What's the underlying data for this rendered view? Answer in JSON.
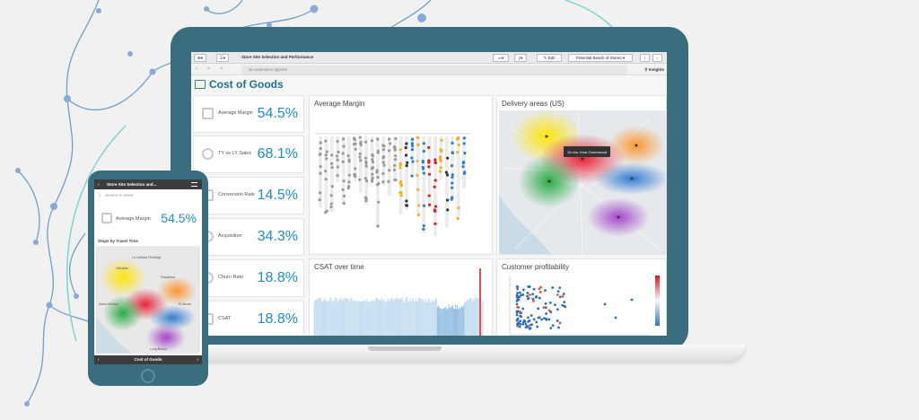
{
  "colors": {
    "device": "#3a6d7d",
    "accent": "#1f8ec2",
    "title": "#1e6f8e",
    "network": "#6fa0c8",
    "ring": "#7fd3cf"
  },
  "laptop": {
    "toolbar": {
      "app_title": "Store Site Selection and Performance",
      "edit_label": "Edit",
      "bookmark_label": "Potential Beach of Stores",
      "insights_label": "Insights"
    },
    "selections": {
      "empty_label": "No selections applied"
    },
    "sheet_title": "Cost of Goods",
    "kpis": [
      {
        "label": "Average Margin",
        "value": "54.5%",
        "icon": "stack-icon"
      },
      {
        "label": "TY vs LY Sales",
        "value": "68.1%",
        "icon": "target-icon"
      },
      {
        "label": "Conversion Rate",
        "value": "14.5%",
        "icon": "cart-icon"
      },
      {
        "label": "Acquisition",
        "value": "34.3%",
        "icon": "bulb-icon"
      },
      {
        "label": "Churn Rate",
        "value": "18.8%",
        "icon": "cycle-icon"
      },
      {
        "label": "CSAT",
        "value": "18.8%",
        "icon": "chat-icon"
      }
    ],
    "panels": {
      "margin": "Average Margin",
      "delivery": "Delivery areas (US)",
      "map_tooltip": "15 min. from Greenwood",
      "csat": "CSAT over time",
      "profit": "Customer profitability"
    }
  },
  "phone": {
    "header": "Store Site Selection and...",
    "search_placeholder": "Search in sheet",
    "kpi": {
      "label": "Average Margin",
      "value": "54.5%"
    },
    "map_title": "Stops by Travel Time",
    "map_places": [
      "La Cañada Flintridge",
      "Pasadena",
      "Glendale",
      "El Monte",
      "Santa Monica",
      "Long Beach"
    ],
    "footer": "Cost of Goods"
  }
}
